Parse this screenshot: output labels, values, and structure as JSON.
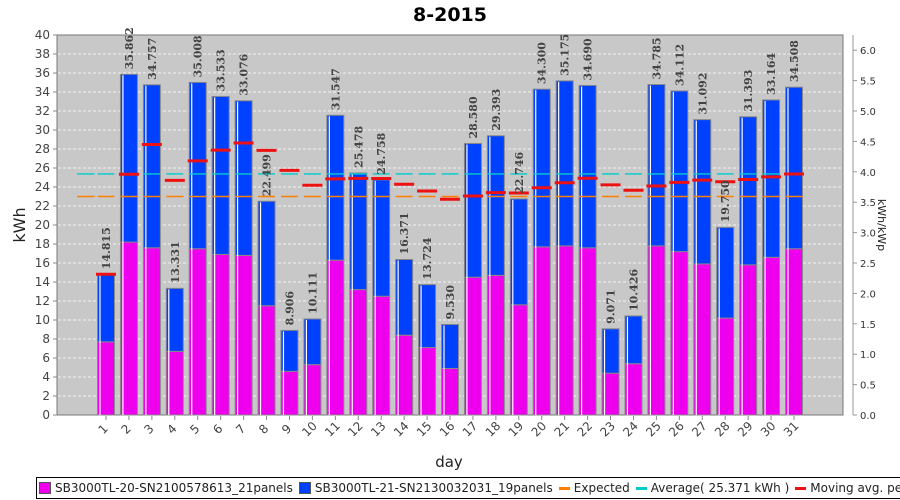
{
  "chart_data": {
    "type": "bar",
    "title": "8-2015",
    "xlabel": "day",
    "ylabel": "kWh",
    "y2label": "kWh/kWp",
    "ylim": [
      0,
      40
    ],
    "y2lim": [
      0,
      6.25
    ],
    "yticks": [
      0,
      2,
      4,
      6,
      8,
      10,
      12,
      14,
      16,
      18,
      20,
      22,
      24,
      26,
      28,
      30,
      32,
      34,
      36,
      38,
      40
    ],
    "y2ticks": [
      "0.0",
      "0.5",
      "1.0",
      "1.5",
      "2.0",
      "2.5",
      "3.0",
      "3.5",
      "4.0",
      "4.5",
      "5.0",
      "5.5",
      "6.0"
    ],
    "grid": true,
    "legend_position": "bottom",
    "categories": [
      "1",
      "2",
      "3",
      "4",
      "5",
      "6",
      "7",
      "8",
      "9",
      "10",
      "11",
      "12",
      "13",
      "14",
      "15",
      "16",
      "17",
      "18",
      "19",
      "20",
      "21",
      "22",
      "23",
      "24",
      "25",
      "26",
      "27",
      "28",
      "29",
      "30",
      "31"
    ],
    "series": [
      {
        "name": "SB3000TL-20-SN2100578613_21panels",
        "color": "#ee00ee",
        "values": [
          7.7,
          18.2,
          17.6,
          6.7,
          17.5,
          16.9,
          16.8,
          11.5,
          4.6,
          5.3,
          16.3,
          13.2,
          12.5,
          8.4,
          7.1,
          4.9,
          14.5,
          14.7,
          11.6,
          17.7,
          17.8,
          17.6,
          4.4,
          5.4,
          17.8,
          17.2,
          15.9,
          10.2,
          15.8,
          16.6,
          17.5
        ]
      },
      {
        "name": "SB3000TL-21-SN2130032031_19panels",
        "color": "#0040ff",
        "values": [
          7.115,
          17.662,
          17.157,
          6.631,
          17.508,
          16.633,
          16.276,
          10.999,
          4.306,
          4.811,
          15.247,
          12.278,
          12.258,
          7.971,
          6.624,
          4.63,
          14.08,
          14.693,
          11.146,
          16.6,
          17.375,
          17.09,
          4.671,
          5.026,
          16.985,
          16.912,
          15.192,
          9.55,
          15.593,
          16.564,
          17.008
        ]
      }
    ],
    "totals": [
      14.815,
      35.862,
      34.757,
      13.331,
      35.008,
      33.533,
      33.076,
      22.499,
      8.906,
      10.111,
      31.547,
      25.478,
      24.758,
      16.371,
      13.724,
      9.53,
      28.58,
      29.393,
      22.746,
      34.3,
      35.175,
      34.69,
      9.071,
      10.426,
      34.785,
      34.112,
      31.092,
      19.75,
      31.393,
      33.164,
      34.508
    ],
    "total_labels": [
      "14.815",
      "35.862",
      "34.757",
      "13.331",
      "35.008",
      "33.533",
      "33.076",
      "22.499",
      "8.906",
      "10.111",
      "31.547",
      "25.478",
      "24.758",
      "16.371",
      "13.724",
      "9.530",
      "28.580",
      "29.393",
      "22.746",
      "34.300",
      "35.175",
      "34.690",
      "9.071",
      "10.426",
      "34.785",
      "34.112",
      "31.092",
      "19.750",
      "31.393",
      "33.164",
      "34.508"
    ],
    "expected": 23.0,
    "average": 25.371,
    "moving_avg_name": "Moving avg. per day.",
    "colors": {
      "expected": "#ff8000",
      "average": "#00cccc",
      "moving_avg": "#ee1111",
      "plot_bg": "#c8c8c8"
    }
  },
  "legend": {
    "items": [
      {
        "label": "SB3000TL-20-SN2100578613_21panels"
      },
      {
        "label": "SB3000TL-21-SN2130032031_19panels"
      },
      {
        "label": "Expected"
      },
      {
        "label": "Average( 25.371 kWh )"
      },
      {
        "label": "Moving avg. per day."
      }
    ]
  }
}
